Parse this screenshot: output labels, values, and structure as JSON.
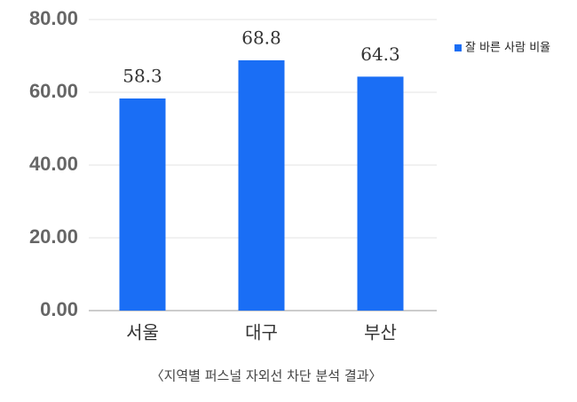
{
  "chart_data": {
    "type": "bar",
    "title": "〈지역별 퍼스널 자외선 차단 분석 결과〉",
    "categories": [
      "서울",
      "대구",
      "부산"
    ],
    "series": [
      {
        "name": "잘 바른 사람 비율",
        "color": "#1a6ef5",
        "values": [
          58.3,
          68.8,
          64.3
        ]
      }
    ],
    "ylim": [
      0,
      80
    ],
    "yticks": [
      {
        "value": 0,
        "label": "0.00"
      },
      {
        "value": 20,
        "label": "20.00"
      },
      {
        "value": 40,
        "label": "40.00"
      },
      {
        "value": 60,
        "label": "60.00"
      },
      {
        "value": 80,
        "label": "80.00"
      }
    ],
    "grid": true,
    "legend": "right"
  }
}
